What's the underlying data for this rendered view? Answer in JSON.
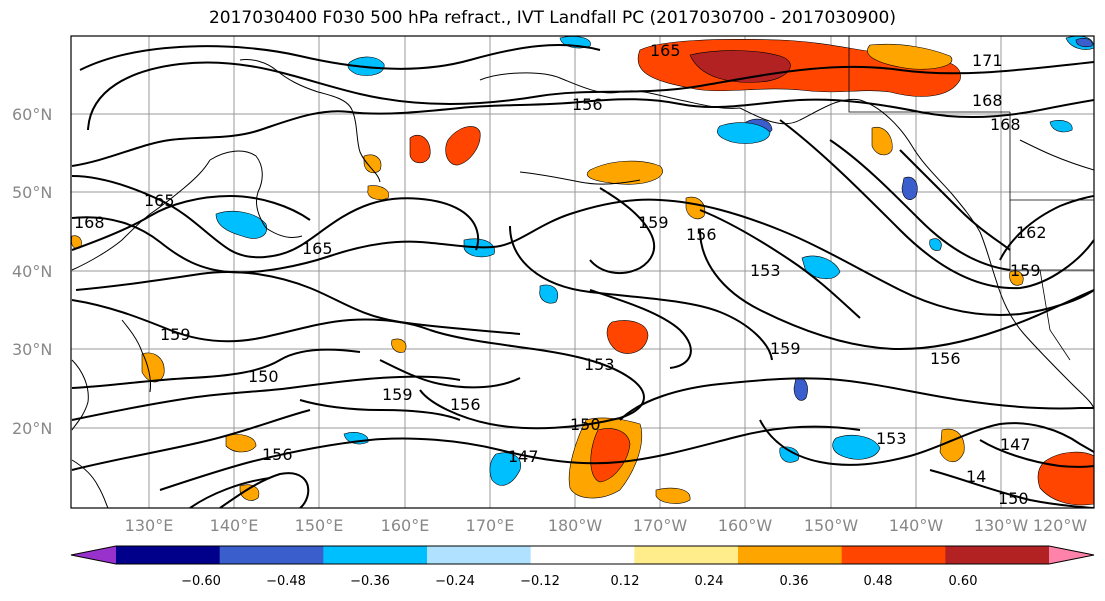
{
  "title": "2017030400 F030 500 hPa refract., IVT Landfall PC (2017030700 - 2017030900)",
  "lat_labels": [
    "60°N",
    "50°N",
    "40°N",
    "30°N",
    "20°N"
  ],
  "lon_labels": [
    "130°E",
    "140°E",
    "150°E",
    "160°E",
    "170°E",
    "180°W",
    "170°W",
    "160°W",
    "150°W",
    "140°W",
    "130°W",
    "120°W"
  ],
  "contour_labels": [
    "165",
    "171",
    "168",
    "168",
    "156",
    "168",
    "165",
    "165",
    "159",
    "156",
    "153",
    "162",
    "159",
    "159",
    "159",
    "153",
    "156",
    "150",
    "159",
    "156",
    "150",
    "147",
    "153",
    "156",
    "147",
    "14",
    "150"
  ],
  "colorbar": {
    "tick_labels": [
      "−0.60",
      "−0.48",
      "−0.36",
      "−0.24",
      "−0.12",
      "0.12",
      "0.24",
      "0.36",
      "0.48",
      "0.60"
    ],
    "colors": [
      "#9932cc",
      "#00008b",
      "#3a5fcd",
      "#00bfff",
      "#b0e2ff",
      "#ffffff",
      "#ffec8b",
      "#ffa500",
      "#ff4500",
      "#b22222",
      "#ff82ab"
    ]
  }
}
